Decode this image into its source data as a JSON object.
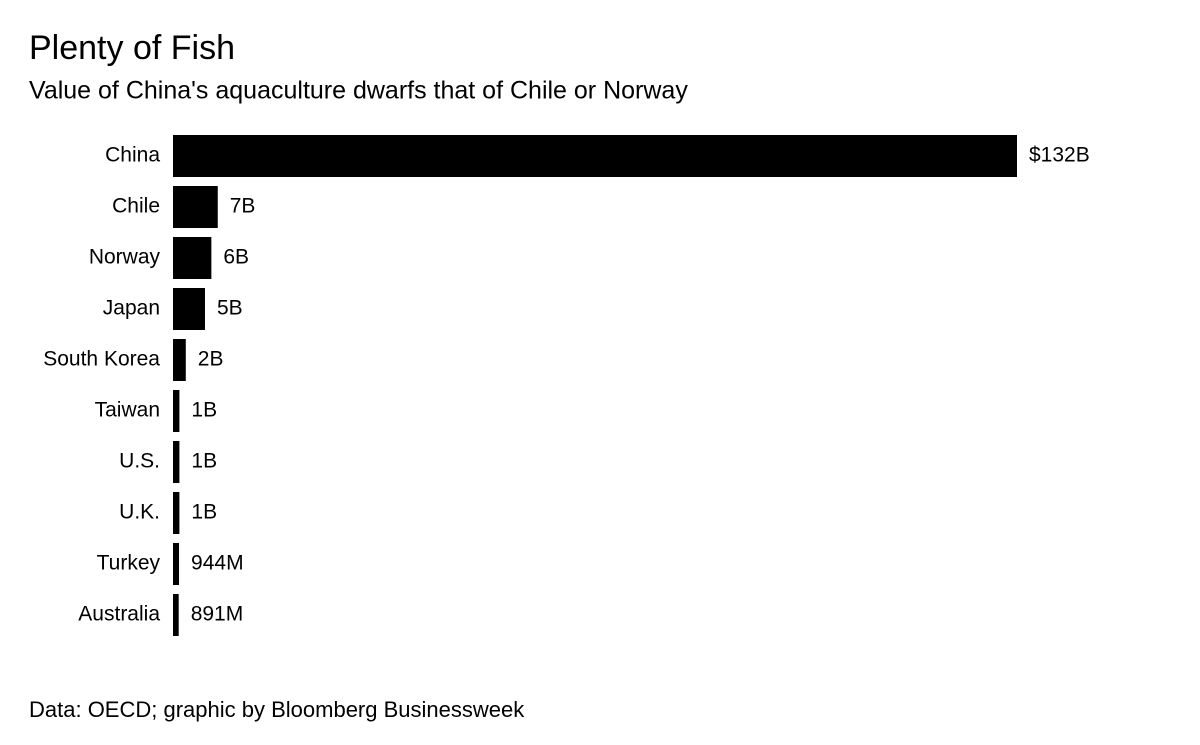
{
  "chart_data": {
    "type": "bar",
    "orientation": "horizontal",
    "title": "Plenty of Fish",
    "subtitle": "Value of China's aquaculture dwarfs that of Chile or Norway",
    "source": "Data: OECD; graphic by Bloomberg Businessweek",
    "categories": [
      "China",
      "Chile",
      "Norway",
      "Japan",
      "South Korea",
      "Taiwan",
      "U.S.",
      "U.K.",
      "Turkey",
      "Australia"
    ],
    "values": [
      132,
      7,
      6,
      5,
      2,
      1,
      1,
      1,
      0.944,
      0.891
    ],
    "value_labels": [
      "$132B",
      "7B",
      "6B",
      "5B",
      "2B",
      "1B",
      "1B",
      "1B",
      "944M",
      "891M"
    ],
    "color": "#000000"
  }
}
